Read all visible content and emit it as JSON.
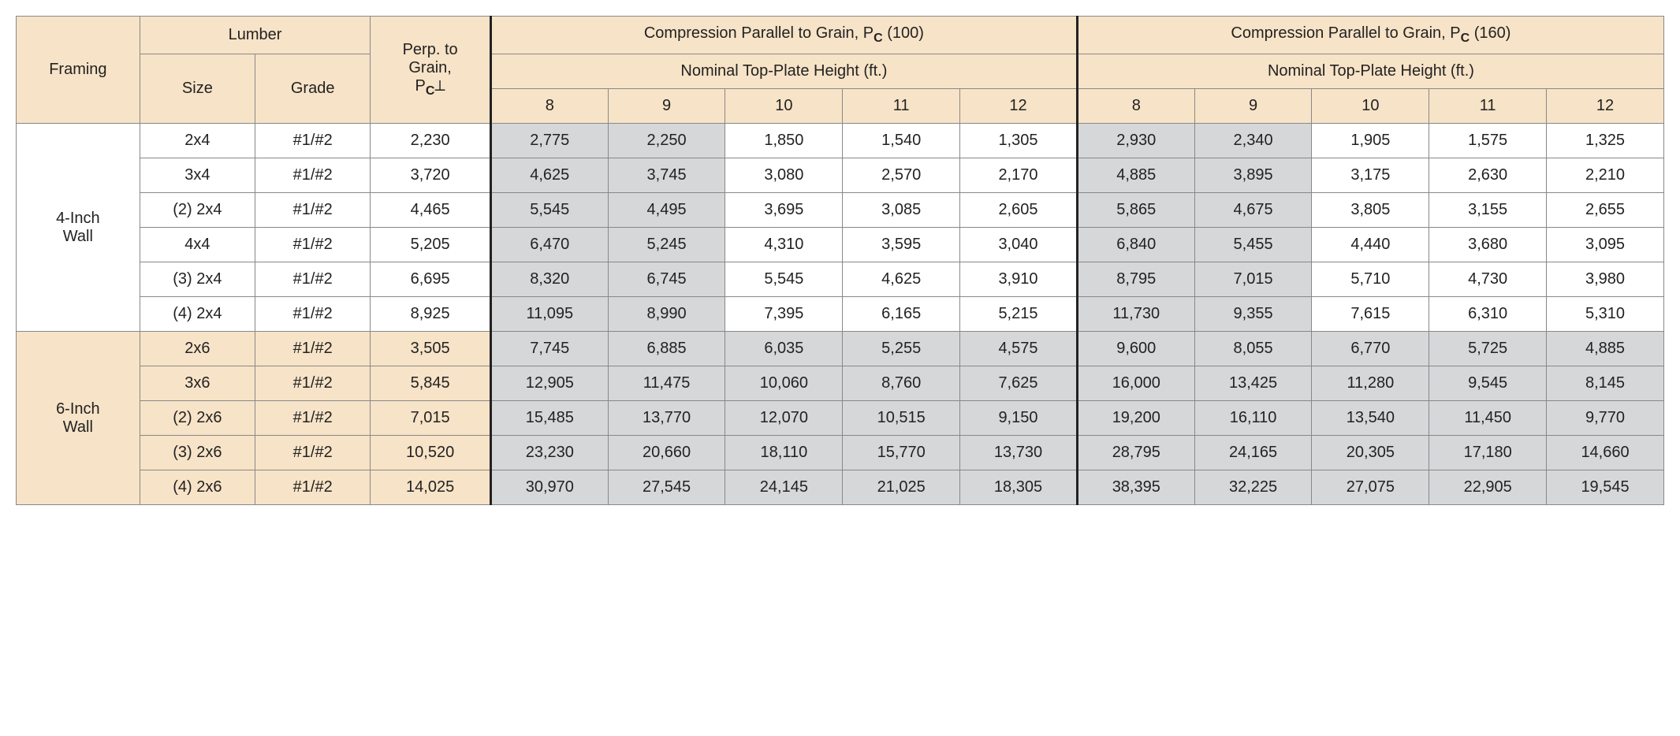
{
  "header": {
    "framing": "Framing",
    "lumber": "Lumber",
    "size": "Size",
    "grade": "Grade",
    "perp_line1": "Perp. to",
    "perp_line2": "Grain,",
    "perp_line3_prefix": "P",
    "perp_line3_sub": "C",
    "perp_line3_suffix": "⟂",
    "comp_prefix": "Compression Parallel to Grain, P",
    "comp_sub": "C",
    "comp_100_suffix": " (100)",
    "comp_160_suffix": " (160)",
    "subhead": "Nominal Top-Plate Height (ft.)",
    "heights": [
      "8",
      "9",
      "10",
      "11",
      "12"
    ]
  },
  "sections": [
    {
      "name": "4-Inch\nWall",
      "peach": false,
      "rows": [
        {
          "size": "2x4",
          "grade": "#1/#2",
          "perp": "2,230",
          "v100": [
            "2,775",
            "2,250",
            "1,850",
            "1,540",
            "1,305"
          ],
          "v160": [
            "2,930",
            "2,340",
            "1,905",
            "1,575",
            "1,325"
          ],
          "shade100": [
            true,
            true,
            false,
            false,
            false
          ],
          "shade160": [
            true,
            true,
            false,
            false,
            false
          ]
        },
        {
          "size": "3x4",
          "grade": "#1/#2",
          "perp": "3,720",
          "v100": [
            "4,625",
            "3,745",
            "3,080",
            "2,570",
            "2,170"
          ],
          "v160": [
            "4,885",
            "3,895",
            "3,175",
            "2,630",
            "2,210"
          ],
          "shade100": [
            true,
            true,
            false,
            false,
            false
          ],
          "shade160": [
            true,
            true,
            false,
            false,
            false
          ]
        },
        {
          "size": "(2) 2x4",
          "grade": "#1/#2",
          "perp": "4,465",
          "v100": [
            "5,545",
            "4,495",
            "3,695",
            "3,085",
            "2,605"
          ],
          "v160": [
            "5,865",
            "4,675",
            "3,805",
            "3,155",
            "2,655"
          ],
          "shade100": [
            true,
            true,
            false,
            false,
            false
          ],
          "shade160": [
            true,
            true,
            false,
            false,
            false
          ]
        },
        {
          "size": "4x4",
          "grade": "#1/#2",
          "perp": "5,205",
          "v100": [
            "6,470",
            "5,245",
            "4,310",
            "3,595",
            "3,040"
          ],
          "v160": [
            "6,840",
            "5,455",
            "4,440",
            "3,680",
            "3,095"
          ],
          "shade100": [
            true,
            true,
            false,
            false,
            false
          ],
          "shade160": [
            true,
            true,
            false,
            false,
            false
          ]
        },
        {
          "size": "(3) 2x4",
          "grade": "#1/#2",
          "perp": "6,695",
          "v100": [
            "8,320",
            "6,745",
            "5,545",
            "4,625",
            "3,910"
          ],
          "v160": [
            "8,795",
            "7,015",
            "5,710",
            "4,730",
            "3,980"
          ],
          "shade100": [
            true,
            true,
            false,
            false,
            false
          ],
          "shade160": [
            true,
            true,
            false,
            false,
            false
          ]
        },
        {
          "size": "(4) 2x4",
          "grade": "#1/#2",
          "perp": "8,925",
          "v100": [
            "11,095",
            "8,990",
            "7,395",
            "6,165",
            "5,215"
          ],
          "v160": [
            "11,730",
            "9,355",
            "7,615",
            "6,310",
            "5,310"
          ],
          "shade100": [
            true,
            true,
            false,
            false,
            false
          ],
          "shade160": [
            true,
            true,
            false,
            false,
            false
          ]
        }
      ]
    },
    {
      "name": "6-Inch\nWall",
      "peach": true,
      "rows": [
        {
          "size": "2x6",
          "grade": "#1/#2",
          "perp": "3,505",
          "v100": [
            "7,745",
            "6,885",
            "6,035",
            "5,255",
            "4,575"
          ],
          "v160": [
            "9,600",
            "8,055",
            "6,770",
            "5,725",
            "4,885"
          ],
          "shade100": [
            true,
            true,
            true,
            true,
            true
          ],
          "shade160": [
            true,
            true,
            true,
            true,
            true
          ]
        },
        {
          "size": "3x6",
          "grade": "#1/#2",
          "perp": "5,845",
          "v100": [
            "12,905",
            "11,475",
            "10,060",
            "8,760",
            "7,625"
          ],
          "v160": [
            "16,000",
            "13,425",
            "11,280",
            "9,545",
            "8,145"
          ],
          "shade100": [
            true,
            true,
            true,
            true,
            true
          ],
          "shade160": [
            true,
            true,
            true,
            true,
            true
          ]
        },
        {
          "size": "(2) 2x6",
          "grade": "#1/#2",
          "perp": "7,015",
          "v100": [
            "15,485",
            "13,770",
            "12,070",
            "10,515",
            "9,150"
          ],
          "v160": [
            "19,200",
            "16,110",
            "13,540",
            "11,450",
            "9,770"
          ],
          "shade100": [
            true,
            true,
            true,
            true,
            true
          ],
          "shade160": [
            true,
            true,
            true,
            true,
            true
          ]
        },
        {
          "size": "(3) 2x6",
          "grade": "#1/#2",
          "perp": "10,520",
          "v100": [
            "23,230",
            "20,660",
            "18,110",
            "15,770",
            "13,730"
          ],
          "v160": [
            "28,795",
            "24,165",
            "20,305",
            "17,180",
            "14,660"
          ],
          "shade100": [
            true,
            true,
            true,
            true,
            true
          ],
          "shade160": [
            true,
            true,
            true,
            true,
            true
          ]
        },
        {
          "size": "(4) 2x6",
          "grade": "#1/#2",
          "perp": "14,025",
          "v100": [
            "30,970",
            "27,545",
            "24,145",
            "21,025",
            "18,305"
          ],
          "v160": [
            "38,395",
            "32,225",
            "27,075",
            "22,905",
            "19,545"
          ],
          "shade100": [
            true,
            true,
            true,
            true,
            true
          ],
          "shade160": [
            true,
            true,
            true,
            true,
            true
          ]
        }
      ]
    }
  ]
}
